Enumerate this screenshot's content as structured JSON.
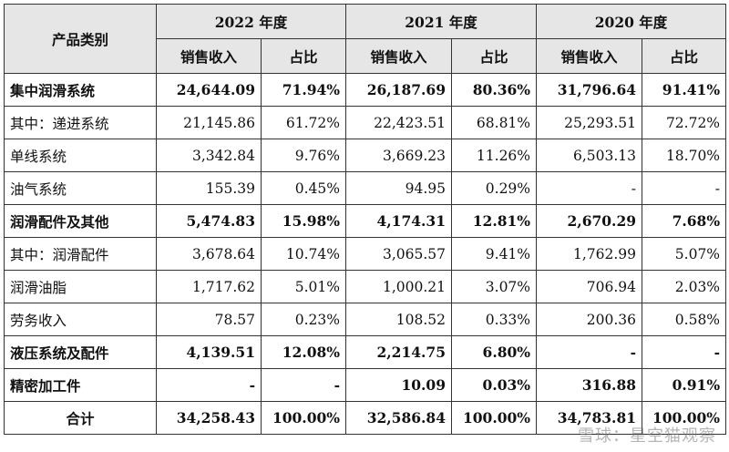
{
  "header": {
    "category_label": "产品类别",
    "years": [
      "2022 年度",
      "2021 年度",
      "2020 年度"
    ],
    "sales_label": "销售收入",
    "ratio_label": "占比"
  },
  "rows": [
    {
      "label": "集中润滑系统",
      "bold": true,
      "indent": false,
      "values": [
        "24,644.09",
        "71.94%",
        "26,187.69",
        "80.36%",
        "31,796.64",
        "91.41%"
      ]
    },
    {
      "label": "其中：递进系统",
      "bold": false,
      "indent": false,
      "values": [
        "21,145.86",
        "61.72%",
        "22,423.51",
        "68.81%",
        "25,293.51",
        "72.72%"
      ]
    },
    {
      "label": "单线系统",
      "bold": false,
      "indent": true,
      "values": [
        "3,342.84",
        "9.76%",
        "3,669.23",
        "11.26%",
        "6,503.13",
        "18.70%"
      ]
    },
    {
      "label": "油气系统",
      "bold": false,
      "indent": true,
      "values": [
        "155.39",
        "0.45%",
        "94.95",
        "0.29%",
        "-",
        "-"
      ]
    },
    {
      "label": "润滑配件及其他",
      "bold": true,
      "indent": false,
      "values": [
        "5,474.83",
        "15.98%",
        "4,174.31",
        "12.81%",
        "2,670.29",
        "7.68%"
      ]
    },
    {
      "label": "其中：润滑配件",
      "bold": false,
      "indent": false,
      "values": [
        "3,678.64",
        "10.74%",
        "3,065.57",
        "9.41%",
        "1,762.99",
        "5.07%"
      ]
    },
    {
      "label": "润滑油脂",
      "bold": false,
      "indent": true,
      "values": [
        "1,717.62",
        "5.01%",
        "1,000.21",
        "3.07%",
        "706.94",
        "2.03%"
      ]
    },
    {
      "label": "劳务收入",
      "bold": false,
      "indent": true,
      "values": [
        "78.57",
        "0.23%",
        "108.52",
        "0.33%",
        "200.36",
        "0.58%"
      ]
    },
    {
      "label": "液压系统及配件",
      "bold": true,
      "indent": false,
      "values": [
        "4,139.51",
        "12.08%",
        "2,214.75",
        "6.80%",
        "-",
        "-"
      ]
    },
    {
      "label": "精密加工件",
      "bold": true,
      "indent": false,
      "values": [
        "-",
        "-",
        "10.09",
        "0.03%",
        "316.88",
        "0.91%"
      ]
    }
  ],
  "total": {
    "label": "合计",
    "values": [
      "34,258.43",
      "100.00%",
      "32,586.84",
      "100.00%",
      "34,783.81",
      "100.00%"
    ]
  },
  "watermark": "雪球：星空猫观察"
}
